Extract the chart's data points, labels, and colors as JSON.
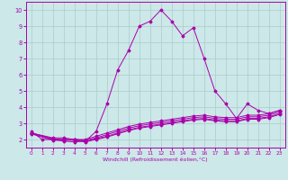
{
  "xlabel": "Windchill (Refroidissement éolien,°C)",
  "xlim": [
    -0.5,
    23.5
  ],
  "ylim": [
    1.5,
    10.5
  ],
  "xticks": [
    0,
    1,
    2,
    3,
    4,
    5,
    6,
    7,
    8,
    9,
    10,
    11,
    12,
    13,
    14,
    15,
    16,
    17,
    18,
    19,
    20,
    21,
    22,
    23
  ],
  "yticks": [
    2,
    3,
    4,
    5,
    6,
    7,
    8,
    9,
    10
  ],
  "bg_color": "#cce8e8",
  "line_color": "#aa00aa",
  "grid_color": "#aacccc",
  "curves": [
    {
      "x": [
        0,
        1,
        2,
        3,
        4,
        5,
        6,
        7,
        8,
        9,
        10,
        11,
        12,
        13,
        14,
        15,
        16,
        17,
        18,
        19,
        20,
        21,
        22,
        23
      ],
      "y": [
        2.5,
        2.0,
        2.0,
        1.9,
        1.85,
        1.9,
        2.5,
        4.2,
        6.3,
        7.5,
        9.0,
        9.3,
        10.0,
        9.3,
        8.4,
        8.9,
        7.0,
        5.0,
        4.2,
        3.3,
        4.2,
        3.8,
        3.6,
        3.8
      ]
    },
    {
      "x": [
        0,
        2,
        3,
        4,
        5,
        6,
        7,
        8,
        9,
        10,
        11,
        12,
        13,
        14,
        15,
        16,
        17,
        18,
        19,
        20,
        21,
        22,
        23
      ],
      "y": [
        2.4,
        2.1,
        2.1,
        2.0,
        2.0,
        2.2,
        2.4,
        2.6,
        2.8,
        2.95,
        3.05,
        3.15,
        3.25,
        3.35,
        3.45,
        3.5,
        3.4,
        3.35,
        3.35,
        3.5,
        3.5,
        3.6,
        3.8
      ]
    },
    {
      "x": [
        0,
        2,
        3,
        4,
        5,
        6,
        7,
        8,
        9,
        10,
        11,
        12,
        13,
        14,
        15,
        16,
        17,
        18,
        19,
        20,
        21,
        22,
        23
      ],
      "y": [
        2.4,
        2.05,
        2.0,
        2.0,
        1.95,
        2.1,
        2.3,
        2.5,
        2.7,
        2.85,
        2.95,
        3.05,
        3.15,
        3.25,
        3.35,
        3.4,
        3.3,
        3.25,
        3.25,
        3.4,
        3.4,
        3.5,
        3.7
      ]
    },
    {
      "x": [
        0,
        2,
        3,
        4,
        5,
        6,
        7,
        8,
        9,
        10,
        11,
        12,
        13,
        14,
        15,
        16,
        17,
        18,
        19,
        20,
        21,
        22,
        23
      ],
      "y": [
        2.4,
        2.0,
        2.0,
        2.0,
        1.9,
        2.05,
        2.2,
        2.4,
        2.6,
        2.75,
        2.85,
        2.95,
        3.05,
        3.15,
        3.25,
        3.3,
        3.2,
        3.15,
        3.15,
        3.3,
        3.3,
        3.4,
        3.6
      ]
    },
    {
      "x": [
        0,
        2,
        3,
        4,
        5,
        6,
        7,
        8,
        9,
        10,
        11,
        12,
        13,
        14,
        15,
        16,
        17,
        18,
        19,
        20,
        21,
        22,
        23
      ],
      "y": [
        2.35,
        1.95,
        1.95,
        1.95,
        1.85,
        2.0,
        2.15,
        2.35,
        2.55,
        2.7,
        2.8,
        2.9,
        3.0,
        3.1,
        3.2,
        3.25,
        3.15,
        3.1,
        3.1,
        3.25,
        3.25,
        3.35,
        3.55
      ]
    }
  ]
}
